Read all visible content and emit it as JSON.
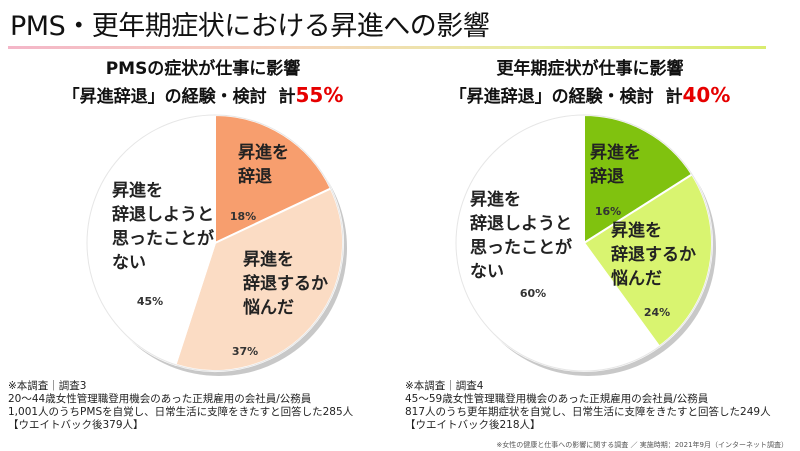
{
  "page": {
    "title": "PMS・更年期症状における昇進への影響",
    "footer_note": "※女性の健康と仕事への影響に関する調査 ／ 実施時期：2021年9月（インターネット調査）"
  },
  "charts": [
    {
      "heading_line1": "PMSの症状が仕事に影響",
      "heading_line2": "「昇進辞退」の経験・検討",
      "total_label": "計",
      "total_value": "55%",
      "notes": [
        "※本調査｜調査3",
        "20～44歳女性管理職登用機会のあった正規雇用の会社員/公務員",
        "1,001人のうちPMSを自覚し、日常生活に支障をきたすと回答した285人",
        "【ウエイトバック後379人】"
      ]
    },
    {
      "heading_line1": "更年期症状が仕事に影響",
      "heading_line2": "「昇進辞退」の経験・検討",
      "total_label": "計",
      "total_value": "40%",
      "notes": [
        "※本調査｜調査4",
        "45～59歳女性管理職登用機会のあった正規雇用の会社員/公務員",
        "817人のうち更年期症状を自覚し、日常生活に支障をきたすと回答した249人",
        "【ウエイトバック後218人】"
      ]
    }
  ],
  "chart_data": [
    {
      "type": "pie",
      "title": "PMSの症状が仕事に影響 「昇進辞退」の経験・検討 計55%",
      "start_angle_deg": 0,
      "direction": "clockwise",
      "slices": [
        {
          "label_lines": [
            "昇進を",
            "辞退"
          ],
          "value": 18,
          "value_label": "18%",
          "color": "#f79e6e"
        },
        {
          "label_lines": [
            "昇進を",
            "辞退するか",
            "悩んだ"
          ],
          "value": 37,
          "value_label": "37%",
          "color": "#fbdcc4"
        },
        {
          "label_lines": [
            "昇進を",
            "辞退しようと",
            "思ったことが",
            "ない"
          ],
          "value": 45,
          "value_label": "45%",
          "color": "#ffffff"
        }
      ]
    },
    {
      "type": "pie",
      "title": "更年期症状が仕事に影響 「昇進辞退」の経験・検討 計40%",
      "start_angle_deg": 0,
      "direction": "clockwise",
      "slices": [
        {
          "label_lines": [
            "昇進を",
            "辞退"
          ],
          "value": 16,
          "value_label": "16%",
          "color": "#80c20f"
        },
        {
          "label_lines": [
            "昇進を",
            "辞退するか",
            "悩んだ"
          ],
          "value": 24,
          "value_label": "24%",
          "color": "#d9f470"
        },
        {
          "label_lines": [
            "昇進を",
            "辞退しようと",
            "思ったことが",
            "ない"
          ],
          "value": 60,
          "value_label": "60%",
          "color": "#ffffff"
        }
      ]
    }
  ]
}
